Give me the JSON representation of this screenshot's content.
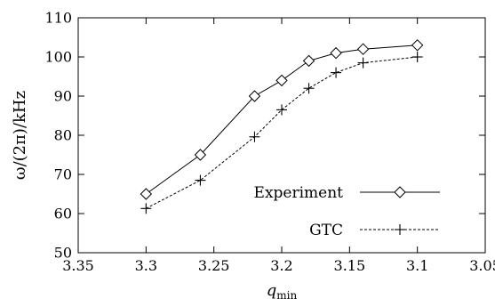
{
  "chart_data": {
    "type": "line",
    "xlabel": "q",
    "xlabel_sub": "min",
    "ylabel": "ω/(2π)/kHz",
    "xlim": [
      3.35,
      3.05
    ],
    "x_reversed": true,
    "ylim": [
      50,
      110
    ],
    "xticks": [
      3.35,
      3.3,
      3.25,
      3.2,
      3.15,
      3.1,
      3.05
    ],
    "xtick_labels": [
      "3.35",
      "3.3",
      "3.25",
      "3.2",
      "3.15",
      "3.1",
      "3.05"
    ],
    "yticks": [
      50,
      60,
      70,
      80,
      90,
      100,
      110
    ],
    "ytick_labels": [
      "50",
      "60",
      "70",
      "80",
      "90",
      "100",
      "110"
    ],
    "grid": false,
    "legend_position": "bottom-right",
    "series": [
      {
        "name": "Experiment",
        "marker": "diamond",
        "line": "solid",
        "x": [
          3.3,
          3.26,
          3.22,
          3.2,
          3.18,
          3.16,
          3.14,
          3.1
        ],
        "y": [
          65,
          75,
          90,
          94,
          99,
          101,
          102,
          103
        ]
      },
      {
        "name": "GTC",
        "marker": "plus",
        "line": "dashed",
        "x": [
          3.3,
          3.26,
          3.22,
          3.2,
          3.18,
          3.16,
          3.14,
          3.1
        ],
        "y": [
          61.3,
          68.5,
          79.6,
          86.5,
          92,
          96,
          98.5,
          100
        ]
      }
    ]
  }
}
